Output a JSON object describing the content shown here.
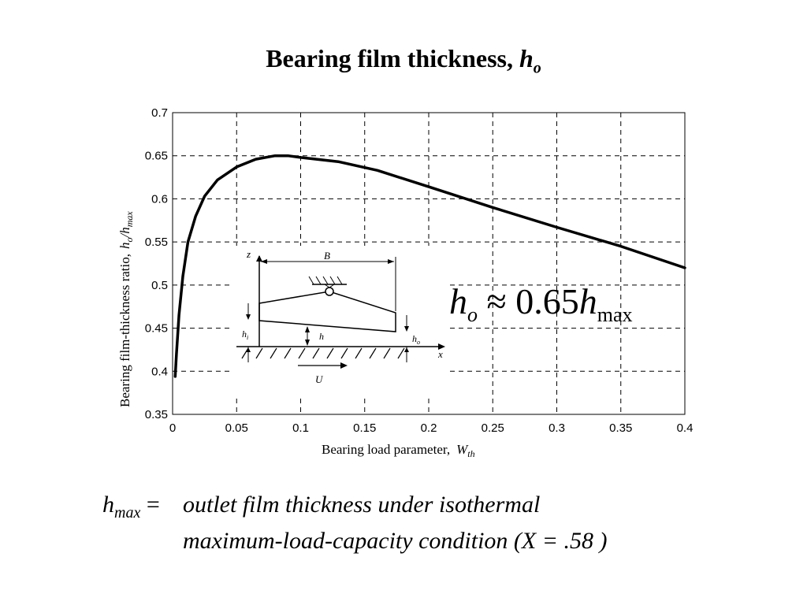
{
  "title": {
    "text": "Bearing film thickness, ",
    "symbol": "h",
    "subscript": "o"
  },
  "chart_data": {
    "type": "line",
    "title": "",
    "xlabel": "Bearing load parameter,",
    "xlabel_symbol": "W",
    "xlabel_subscript": "th",
    "ylabel": "Bearing film-thickness ratio,",
    "ylabel_symbol": "h",
    "ylabel_sub_o": "o",
    "ylabel_sub_max": "max",
    "xlim": [
      0,
      0.4
    ],
    "ylim": [
      0.35,
      0.7
    ],
    "grid": true,
    "grid_style": "dashed",
    "x_ticks": [
      "0",
      "0.05",
      "0.1",
      "0.15",
      "0.2",
      "0.25",
      "0.3",
      "0.35",
      "0.4"
    ],
    "y_ticks": [
      "0.35",
      "0.4",
      "0.45",
      "0.5",
      "0.55",
      "0.6",
      "0.65",
      "0.7"
    ],
    "series": [
      {
        "x": [
          0.002,
          0.003,
          0.005,
          0.008,
          0.012,
          0.018,
          0.025,
          0.035,
          0.05,
          0.065,
          0.08,
          0.09,
          0.1,
          0.13,
          0.16,
          0.2,
          0.25,
          0.3,
          0.35,
          0.4
        ],
        "y": [
          0.394,
          0.42,
          0.465,
          0.51,
          0.55,
          0.58,
          0.603,
          0.622,
          0.637,
          0.646,
          0.65,
          0.65,
          0.648,
          0.643,
          0.633,
          0.614,
          0.59,
          0.567,
          0.545,
          0.52
        ]
      }
    ]
  },
  "inset": {
    "z": "z",
    "x": "x",
    "B": "B",
    "hi_main": "h",
    "hi_sub": "i",
    "h": "h",
    "ho_main": "h",
    "ho_sub": "o",
    "U": "U"
  },
  "formula": {
    "lhs": "h",
    "lhs_sub": "o",
    "op": "≈ 0.65",
    "rhs": "h",
    "rhs_sub": "max"
  },
  "definition": {
    "term": "h",
    "term_sub": "max",
    "eq": " =",
    "line1": "outlet film thickness under isothermal",
    "line2": "maximum-load-capacity condition (X = .58 )"
  }
}
